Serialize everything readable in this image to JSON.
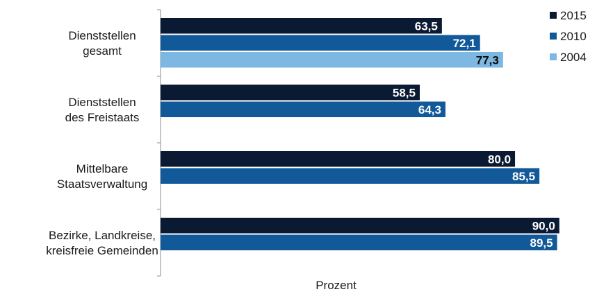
{
  "chart_data": {
    "type": "bar",
    "orientation": "horizontal",
    "categories": [
      [
        "Dienststellen",
        "gesamt"
      ],
      [
        "Dienststellen",
        "des Freistaats"
      ],
      [
        "Mittelbare",
        "Staatsverwaltung"
      ],
      [
        "Bezirke, Landkreise,",
        "kreisfreie Gemeinden"
      ]
    ],
    "series": [
      {
        "name": "2015",
        "color": "#0b1a33",
        "label_color": "#ffffff",
        "values": [
          63.5,
          58.5,
          80.0,
          90.0
        ],
        "labels": [
          "63,5",
          "58,5",
          "80,0",
          "90,0"
        ]
      },
      {
        "name": "2010",
        "color": "#12599a",
        "label_color": "#ffffff",
        "values": [
          72.1,
          64.3,
          85.5,
          89.5
        ],
        "labels": [
          "72,1",
          "64,3",
          "85,5",
          "89,5"
        ]
      },
      {
        "name": "2004",
        "color": "#7db8e2",
        "label_color": "#0a0a0a",
        "values": [
          77.3,
          null,
          null,
          null
        ],
        "labels": [
          "77,3",
          null,
          null,
          null
        ]
      }
    ],
    "xlabel": "Prozent",
    "xlim": [
      0,
      90.5
    ],
    "grid": false,
    "legend_position": "top-right"
  }
}
